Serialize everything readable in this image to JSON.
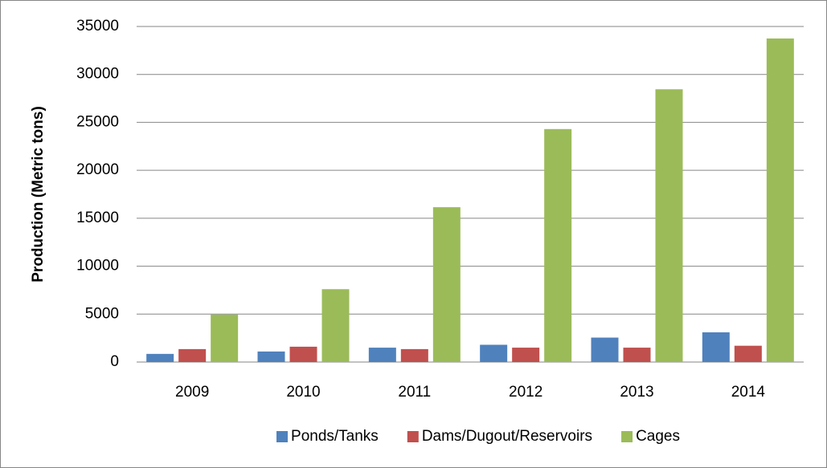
{
  "chart_data": {
    "type": "bar",
    "y_label": "Production (Metric tons)",
    "categories": [
      "2009",
      "2010",
      "2011",
      "2012",
      "2013",
      "2014"
    ],
    "series": [
      {
        "name": "Ponds/Tanks",
        "color": "#4f81bd",
        "values": [
          850,
          1100,
          1500,
          1800,
          2550,
          3100
        ]
      },
      {
        "name": "Dams/Dugout/Reservoirs",
        "color": "#c0504d",
        "values": [
          1350,
          1600,
          1350,
          1500,
          1500,
          1700
        ]
      },
      {
        "name": "Cages",
        "color": "#9bbb59",
        "values": [
          4950,
          7600,
          16150,
          24300,
          28450,
          33750
        ]
      }
    ],
    "ylim": [
      0,
      35000
    ],
    "yticks": [
      0,
      5000,
      10000,
      15000,
      20000,
      25000,
      30000,
      35000
    ],
    "grid": true,
    "legend": "bottom"
  }
}
